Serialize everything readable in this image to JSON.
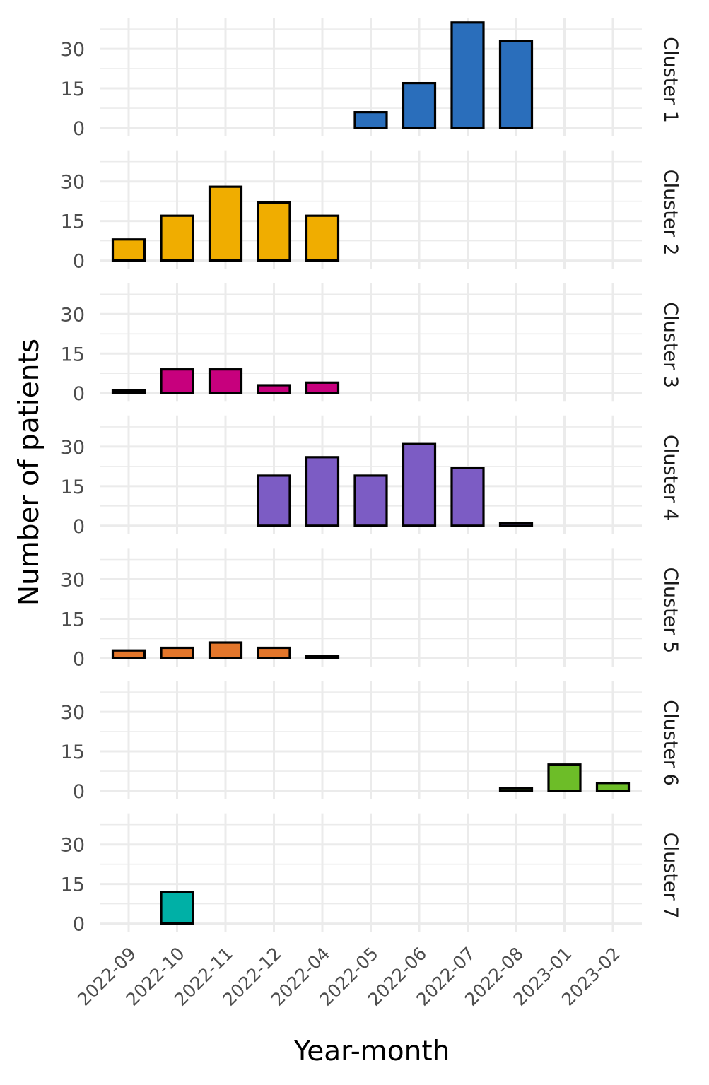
{
  "chart_data": {
    "type": "bar",
    "layout": "faceted-vertical",
    "xlabel": "Year-month",
    "ylabel": "Number of patients",
    "categories": [
      "2022-09",
      "2022-10",
      "2022-11",
      "2022-12",
      "2022-04",
      "2022-05",
      "2022-06",
      "2022-07",
      "2022-08",
      "2023-01",
      "2023-02"
    ],
    "yticks": [
      0,
      15,
      30
    ],
    "ylim": [
      0,
      40
    ],
    "grid": true,
    "legend": "none",
    "series": [
      {
        "name": "Cluster 1",
        "color": "#2a6ebb",
        "values": [
          null,
          null,
          null,
          null,
          null,
          6,
          17,
          40,
          33,
          null,
          null
        ]
      },
      {
        "name": "Cluster 2",
        "color": "#f0ad00",
        "values": [
          8,
          17,
          28,
          22,
          17,
          null,
          null,
          null,
          null,
          null,
          null
        ]
      },
      {
        "name": "Cluster 3",
        "color": "#c7007d",
        "values": [
          1,
          9,
          9,
          3,
          4,
          null,
          null,
          null,
          null,
          null,
          null
        ]
      },
      {
        "name": "Cluster 4",
        "color": "#7c5cc4",
        "values": [
          null,
          null,
          null,
          19,
          26,
          19,
          31,
          22,
          1,
          null,
          null
        ]
      },
      {
        "name": "Cluster 5",
        "color": "#e3762b",
        "values": [
          3,
          4,
          6,
          4,
          1,
          null,
          null,
          null,
          null,
          null,
          null
        ]
      },
      {
        "name": "Cluster 6",
        "color": "#6dbd28",
        "values": [
          null,
          null,
          null,
          null,
          null,
          null,
          null,
          null,
          1,
          10,
          3
        ]
      },
      {
        "name": "Cluster 7",
        "color": "#00b0a6",
        "values": [
          null,
          12,
          null,
          null,
          null,
          null,
          null,
          null,
          null,
          null,
          null
        ]
      }
    ]
  }
}
